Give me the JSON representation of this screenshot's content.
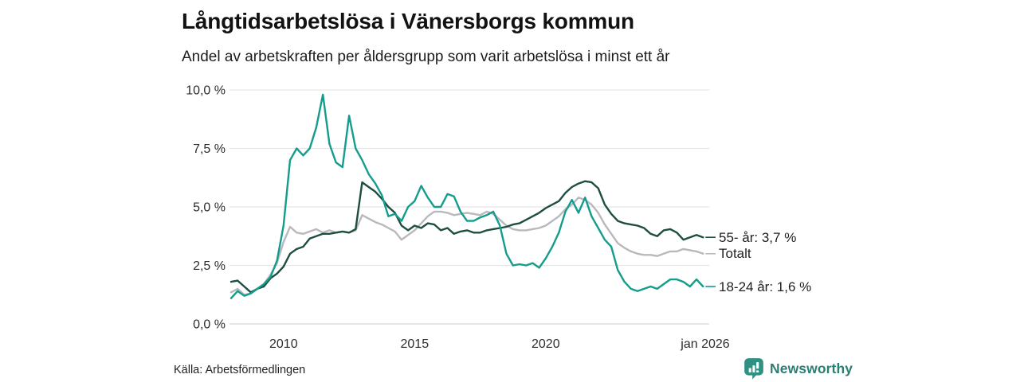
{
  "title": "Långtidsarbetslösa i Vänersborgs kommun",
  "subtitle": "Andel av arbetskraften per åldersgrupp som varit arbetslösa i minst ett år",
  "source": "Källa: Arbetsförmedlingen",
  "branding": {
    "name": "Newsworthy",
    "logo_icon": "bar-chart-speech-bubble-icon",
    "text_color": "#2b7e72",
    "logo_color": "#2f9183"
  },
  "colors": {
    "series_55_plus": "#1e4d42",
    "series_total": "#b9b9bd",
    "series_youth": "#149c8c",
    "gridline": "#e6e6e6",
    "axis_line": "#d7d7d7",
    "text": "#1f1f1f"
  },
  "chart_data": {
    "type": "line",
    "title": "Långtidsarbetslösa i Vänersborgs kommun",
    "subtitle": "Andel av arbetskraften per åldersgrupp som varit arbetslösa i minst ett år",
    "unit": "%",
    "grid": true,
    "legend_position": "right-of-line-ends",
    "x_range": [
      2008,
      2026.083
    ],
    "y_range": [
      0,
      10
    ],
    "y_ticks": [
      {
        "label": "10,0 %",
        "value": 10
      },
      {
        "label": "7,5 %",
        "value": 7.5
      },
      {
        "label": "5,0 %",
        "value": 5
      },
      {
        "label": "2,5 %",
        "value": 2.5
      },
      {
        "label": "0,0 %",
        "value": 0
      }
    ],
    "x_ticks": [
      {
        "label": "2010",
        "value": 2010
      },
      {
        "label": "2015",
        "value": 2015
      },
      {
        "label": "2020",
        "value": 2020
      },
      {
        "label": "jan 2026",
        "value": 2026.083
      }
    ],
    "x": [
      2008,
      2008.25,
      2008.5,
      2008.75,
      2009,
      2009.25,
      2009.5,
      2009.75,
      2010,
      2010.25,
      2010.5,
      2010.75,
      2011,
      2011.25,
      2011.5,
      2011.75,
      2012,
      2012.25,
      2012.5,
      2012.75,
      2013,
      2013.25,
      2013.5,
      2013.75,
      2014,
      2014.25,
      2014.5,
      2014.75,
      2015,
      2015.25,
      2015.5,
      2015.75,
      2016,
      2016.25,
      2016.5,
      2016.75,
      2017,
      2017.25,
      2017.5,
      2017.75,
      2018,
      2018.25,
      2018.5,
      2018.75,
      2019,
      2019.25,
      2019.5,
      2019.75,
      2020,
      2020.25,
      2020.5,
      2020.75,
      2021,
      2021.25,
      2021.5,
      2021.75,
      2022,
      2022.25,
      2022.5,
      2022.75,
      2023,
      2023.25,
      2023.5,
      2023.75,
      2024,
      2024.25,
      2024.5,
      2024.75,
      2025,
      2025.25,
      2025.5,
      2025.75,
      2026
    ],
    "series": [
      {
        "id": "55-plus",
        "name": "55- år",
        "end_label": "55- år: 3,7 %",
        "latest_value": "3,7 %",
        "color": "#1e4d42",
        "values": [
          1.8,
          1.85,
          1.6,
          1.35,
          1.5,
          1.6,
          1.95,
          2.15,
          2.45,
          3,
          3.2,
          3.3,
          3.65,
          3.75,
          3.85,
          3.85,
          3.9,
          3.95,
          3.9,
          4.05,
          6.05,
          5.85,
          5.65,
          5.35,
          5,
          4.75,
          4.2,
          4,
          4.2,
          4.1,
          4.3,
          4.25,
          4,
          4.1,
          3.85,
          3.95,
          4,
          3.9,
          3.9,
          4,
          4.05,
          4.1,
          4.15,
          4.25,
          4.3,
          4.45,
          4.6,
          4.75,
          4.95,
          5.1,
          5.25,
          5.6,
          5.85,
          6,
          6.1,
          6.05,
          5.8,
          5.1,
          4.7,
          4.4,
          4.3,
          4.25,
          4.2,
          4.1,
          3.85,
          3.75,
          4,
          4.05,
          3.9,
          3.6,
          3.7,
          3.8,
          3.7
        ]
      },
      {
        "id": "total",
        "name": "Totalt",
        "end_label": "Totalt",
        "latest_value": "",
        "color": "#b9b9bd",
        "values": [
          1.35,
          1.5,
          1.25,
          1.3,
          1.5,
          1.7,
          2.1,
          2.6,
          3.5,
          4.15,
          3.9,
          3.85,
          3.95,
          4.05,
          3.9,
          4,
          3.9,
          3.95,
          3.9,
          4,
          4.65,
          4.5,
          4.35,
          4.25,
          4.1,
          3.95,
          3.6,
          3.8,
          4,
          4.3,
          4.6,
          4.8,
          4.8,
          4.75,
          4.65,
          4.7,
          4.75,
          4.7,
          4.65,
          4.8,
          4.7,
          4.45,
          4.2,
          4.05,
          4,
          4,
          4.05,
          4.1,
          4.2,
          4.4,
          4.6,
          4.9,
          5.1,
          5.4,
          5.3,
          5.1,
          4.75,
          4.25,
          3.85,
          3.45,
          3.25,
          3.1,
          3,
          2.95,
          2.95,
          2.9,
          3,
          3.1,
          3.1,
          3.2,
          3.15,
          3.1,
          3
        ]
      },
      {
        "id": "18-24",
        "name": "18-24 år",
        "end_label": "18-24 år: 1,6 %",
        "latest_value": "1,6 %",
        "color": "#149c8c",
        "values": [
          1.1,
          1.4,
          1.2,
          1.3,
          1.5,
          1.7,
          2,
          2.7,
          4.2,
          7,
          7.5,
          7.2,
          7.5,
          8.4,
          9.8,
          7.7,
          6.9,
          6.7,
          8.9,
          7.5,
          7,
          6.4,
          6,
          5.5,
          4.6,
          4.7,
          4.4,
          5,
          5.25,
          5.9,
          5.4,
          5,
          5,
          5.55,
          5.45,
          4.8,
          4.4,
          4.4,
          4.55,
          4.65,
          4.8,
          4.2,
          3,
          2.5,
          2.55,
          2.5,
          2.6,
          2.4,
          2.8,
          3.3,
          3.9,
          4.8,
          5.3,
          4.75,
          5.4,
          4.6,
          4.1,
          3.6,
          3.3,
          2.3,
          1.8,
          1.5,
          1.4,
          1.5,
          1.6,
          1.5,
          1.7,
          1.9,
          1.9,
          1.8,
          1.6,
          1.9,
          1.6
        ]
      }
    ]
  }
}
